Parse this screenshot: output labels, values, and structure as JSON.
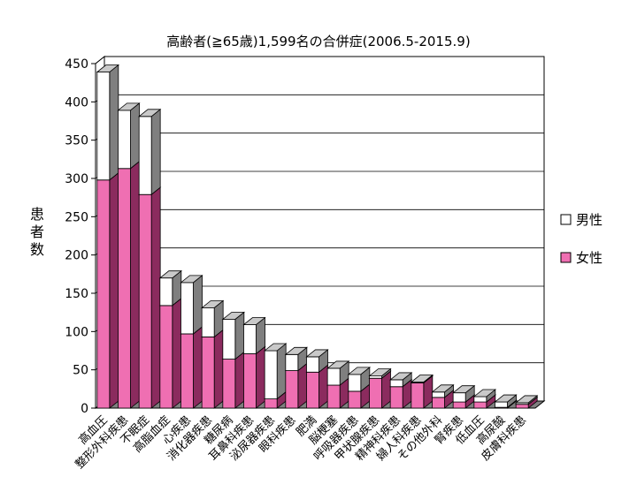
{
  "chart_data": {
    "type": "bar",
    "stacked": true,
    "three_d": true,
    "title": "高齢者(≧65歳)1,599名の合併症(2006.5-2015.9)",
    "ylabel": "患者数",
    "ylim": [
      0,
      450
    ],
    "yticks": [
      0,
      50,
      100,
      150,
      200,
      250,
      300,
      350,
      400,
      450
    ],
    "grid": true,
    "legend_position": "right",
    "categories": [
      "高血圧",
      "整形外科疾患",
      "不眠症",
      "高脂血症",
      "心疾患",
      "消化器疾患",
      "糖尿病",
      "耳鼻科疾患",
      "泌尿器疾患",
      "眼科疾患",
      "肥満",
      "脳梗塞",
      "呼吸器疾患",
      "甲状腺疾患",
      "精神科疾患",
      "婦人科疾患",
      "その他外科",
      "腎疾患",
      "低血圧",
      "高尿酸",
      "皮膚科疾患"
    ],
    "series": [
      {
        "name": "女性",
        "color": "#ef6fb2",
        "values": [
          298,
          313,
          279,
          134,
          97,
          93,
          64,
          71,
          12,
          49,
          47,
          30,
          22,
          39,
          28,
          33,
          14,
          8,
          8,
          1,
          5
        ]
      },
      {
        "name": "男性",
        "color": "#ffffff",
        "values": [
          141,
          76,
          102,
          36,
          67,
          38,
          52,
          38,
          63,
          21,
          20,
          22,
          22,
          3,
          9,
          1,
          7,
          12,
          7,
          7,
          2
        ]
      }
    ]
  },
  "colors": {
    "female_front": "#ef6fb2",
    "female_top": "#f59fcb",
    "female_side": "#8b2b5e",
    "male_front": "#ffffff",
    "male_top": "#c9c9c9",
    "male_side": "#7f7f7f",
    "wall": "#ffffff",
    "floor": "#7f7f7f",
    "grid": "#000000"
  }
}
